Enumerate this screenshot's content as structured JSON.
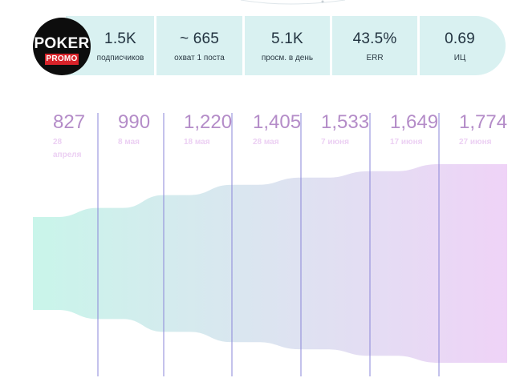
{
  "logo": {
    "line1": "POKER",
    "line2": "PROMO"
  },
  "stats": [
    {
      "value": "1.5K",
      "label": "подписчиков"
    },
    {
      "value": "~ 665",
      "label": "охват 1 поста"
    },
    {
      "value": "5.1K",
      "label": "просм. в день"
    },
    {
      "value": "43.5%",
      "label": "ERR"
    },
    {
      "value": "0.69",
      "label": "ИЦ"
    }
  ],
  "colors": {
    "stats_bg": "#d9f1f1",
    "chart_start": "#c9f5ea",
    "chart_end": "#efd3f7",
    "count_text": "#b48cc8",
    "date_text": "#ecd0f3",
    "gridline": "#8a86d8"
  },
  "chart_data": {
    "type": "area",
    "categories": [
      "28 апреля",
      "8 мая",
      "18 мая",
      "28 мая",
      "7 июня",
      "17 июня",
      "27 июня"
    ],
    "values": [
      827,
      990,
      1220,
      1405,
      1533,
      1649,
      1774
    ],
    "value_labels": [
      "827",
      "990",
      "1,220",
      "1,405",
      "1,533",
      "1,649",
      "1,774"
    ],
    "title": "",
    "xlabel": "",
    "ylabel": "",
    "grid": "vertical",
    "legend": "none"
  }
}
